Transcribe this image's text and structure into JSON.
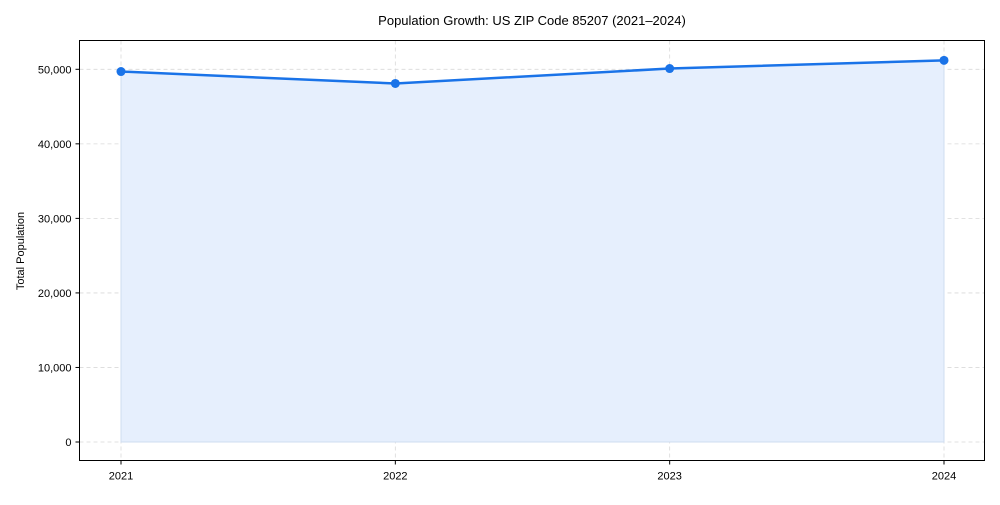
{
  "chart_data": {
    "type": "line",
    "title": "Population Growth: US ZIP Code 85207 (2021–2024)",
    "xlabel": "",
    "ylabel": "Total Population",
    "categories": [
      "2021",
      "2022",
      "2023",
      "2024"
    ],
    "series": [
      {
        "name": "Total Population",
        "values": [
          49700,
          48100,
          50100,
          51200
        ]
      }
    ],
    "yticks": [
      0,
      10000,
      20000,
      30000,
      40000,
      50000
    ],
    "ytick_labels": [
      "0",
      "10,000",
      "20,000",
      "30,000",
      "40,000",
      "50,000"
    ],
    "ylim": [
      -2600,
      53900
    ],
    "grid": true,
    "area_fill": true,
    "colors": {
      "line": "#1a73e8",
      "fill": "#e6effd",
      "grid": "#d9d9d9"
    }
  }
}
